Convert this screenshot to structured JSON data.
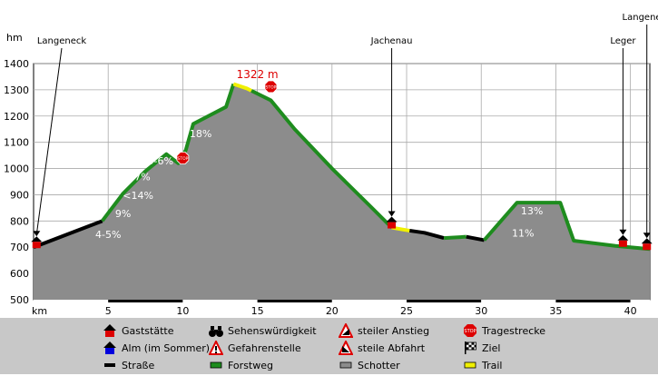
{
  "chart_data": {
    "type": "area",
    "title": "",
    "ylabel": "hm",
    "xlabel": "km",
    "ylim": [
      500,
      1400
    ],
    "xlim": [
      0,
      41.3
    ],
    "yticks": [
      500,
      600,
      700,
      800,
      900,
      1000,
      1100,
      1200,
      1300,
      1400
    ],
    "xticks": [
      5,
      10,
      15,
      20,
      25,
      30,
      35,
      40
    ],
    "ytick_labels": [
      "500",
      "600",
      "700",
      "800",
      "900",
      "1000",
      "1100",
      "1200",
      "1300",
      "1400"
    ],
    "xtick_labels": [
      "5",
      "10",
      "15",
      "20",
      "25",
      "30",
      "35",
      "40"
    ],
    "grid": true,
    "profile": [
      {
        "x": 0,
        "y": 700
      },
      {
        "x": 4.6,
        "y": 800
      },
      {
        "x": 6,
        "y": 905
      },
      {
        "x": 7.5,
        "y": 990
      },
      {
        "x": 8.9,
        "y": 1055
      },
      {
        "x": 9.7,
        "y": 1020
      },
      {
        "x": 10.2,
        "y": 1070
      },
      {
        "x": 10.7,
        "y": 1170
      },
      {
        "x": 12.9,
        "y": 1235
      },
      {
        "x": 13.4,
        "y": 1322
      },
      {
        "x": 14.3,
        "y": 1305
      },
      {
        "x": 15.9,
        "y": 1260
      },
      {
        "x": 17.5,
        "y": 1150
      },
      {
        "x": 20,
        "y": 1000
      },
      {
        "x": 22.5,
        "y": 860
      },
      {
        "x": 24,
        "y": 775
      },
      {
        "x": 25,
        "y": 765
      },
      {
        "x": 26.2,
        "y": 755
      },
      {
        "x": 27.5,
        "y": 735
      },
      {
        "x": 29,
        "y": 740
      },
      {
        "x": 30.2,
        "y": 727
      },
      {
        "x": 32.4,
        "y": 870
      },
      {
        "x": 35.3,
        "y": 870
      },
      {
        "x": 36.2,
        "y": 725
      },
      {
        "x": 39,
        "y": 705
      },
      {
        "x": 41.3,
        "y": 693
      }
    ],
    "segments": [
      {
        "surface": "Straße",
        "from": 0,
        "to": 4.6
      },
      {
        "surface": "Forstweg",
        "from": 4.6,
        "to": 13.4
      },
      {
        "surface": "Trail",
        "from": 13.4,
        "to": 14.6
      },
      {
        "surface": "Forstweg",
        "from": 14.6,
        "to": 24
      },
      {
        "surface": "Trail",
        "from": 24,
        "to": 25.2
      },
      {
        "surface": "Straße",
        "from": 25.2,
        "to": 27.5
      },
      {
        "surface": "Forstweg",
        "from": 27.5,
        "to": 29
      },
      {
        "surface": "Straße",
        "from": 29,
        "to": 30.2
      },
      {
        "surface": "Forstweg",
        "from": 30.2,
        "to": 41.3
      }
    ],
    "gradients": [
      {
        "text": "4-5%",
        "x": 5,
        "y": 735
      },
      {
        "text": "9%",
        "x": 6,
        "y": 815
      },
      {
        "text": "<14%",
        "x": 7,
        "y": 885
      },
      {
        "text": "7%",
        "x": 7.3,
        "y": 955
      },
      {
        "text": "5-6%",
        "x": 8.5,
        "y": 1015
      },
      {
        "text": "18%",
        "x": 11.2,
        "y": 1120
      },
      {
        "text": "13%",
        "x": 33.4,
        "y": 825
      },
      {
        "text": "11%",
        "x": 32.8,
        "y": 740
      }
    ],
    "peak_label": {
      "text": "1322 m",
      "x": 15,
      "y": 1345
    },
    "waypoints": [
      {
        "name": "Langeneck",
        "x": 0.2,
        "y": 700,
        "label_pos": "high"
      },
      {
        "name": "Jachenau",
        "x": 24,
        "y": 775,
        "label_pos": "high"
      },
      {
        "name": "Leger",
        "x": 39.5,
        "y": 705,
        "label_pos": "high"
      },
      {
        "name": "Langeneck",
        "x": 41.1,
        "y": 693,
        "label_pos": "top"
      }
    ],
    "stops": [
      {
        "x": 10,
        "y": 1040
      },
      {
        "x": 15.9,
        "y": 1312
      }
    ],
    "colors": {
      "fill": "#8c8c8c",
      "forstweg": "#1e8c1e",
      "strasse": "#000000",
      "trail": "#f0f000",
      "axis_bg": "#ffffff",
      "legend_bg": "#c8c8c8",
      "red": "#dd0000"
    }
  },
  "legend": [
    {
      "icon": "house-red-icon",
      "label": "Gaststätte"
    },
    {
      "icon": "binoculars-icon",
      "label": "Sehenswürdigkeit"
    },
    {
      "icon": "steep-climb-icon",
      "label": "steiler Anstieg"
    },
    {
      "icon": "stop-sign-icon",
      "label": "Tragestrecke"
    },
    {
      "icon": "house-blue-icon",
      "label": "Alm (im Sommer)"
    },
    {
      "icon": "danger-icon",
      "label": "Gefahrenstelle"
    },
    {
      "icon": "steep-descent-icon",
      "label": "steile Abfahrt"
    },
    {
      "icon": "checkered-flag-icon",
      "label": "Ziel"
    },
    {
      "icon": "strasse-swatch",
      "label": "Straße"
    },
    {
      "icon": "forstweg-swatch",
      "label": "Forstweg"
    },
    {
      "icon": "schotter-swatch",
      "label": "Schotter"
    },
    {
      "icon": "trail-swatch",
      "label": "Trail"
    }
  ]
}
